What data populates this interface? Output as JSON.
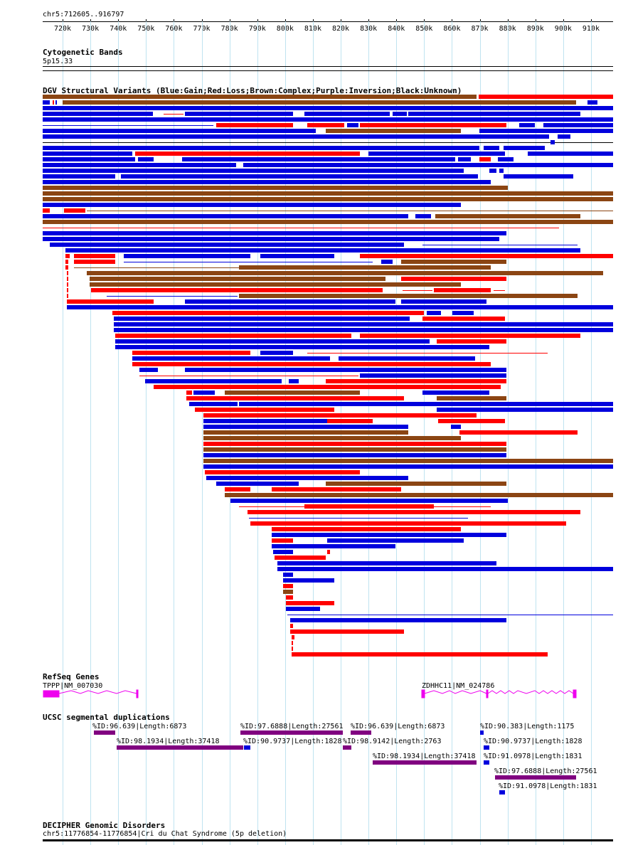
{
  "ruler": {
    "location": "chr5:712605..916797",
    "ticks": [
      "720k",
      "730k",
      "740k",
      "750k",
      "760k",
      "770k",
      "780k",
      "790k",
      "800k",
      "810k",
      "820k",
      "830k",
      "840k",
      "850k",
      "860k",
      "870k",
      "880k",
      "890k",
      "900k",
      "910k"
    ]
  },
  "tracks": {
    "cytoband": {
      "title": "Cytogenetic Bands",
      "band": "5p15.33"
    },
    "dgv": {
      "title": "DGV Structural Variants (Blue:Gain;Red:Loss;Brown:Complex;Purple:Inversion;Black:Unknown)",
      "legend": [
        {
          "name": "Gain",
          "color": "#0000dd"
        },
        {
          "name": "Loss",
          "color": "#ff0000"
        },
        {
          "name": "Complex",
          "color": "#8b4513"
        },
        {
          "name": "Inversion",
          "color": "#800080"
        },
        {
          "name": "Unknown",
          "color": "#000000"
        }
      ]
    },
    "refseq": {
      "title": "RefSeq Genes",
      "genes": [
        {
          "label": "TPPP|NM_007030"
        },
        {
          "label": "ZDHHC11|NM_024786"
        }
      ],
      "color": "#ee00ee"
    },
    "segdup": {
      "title": "UCSC segmental duplications",
      "color": "#800080",
      "features": [
        {
          "label": "%ID:96.639|Length:6873"
        },
        {
          "label": "%ID:98.1934|Length:37418"
        },
        {
          "label": "%ID:97.6888|Length:27561"
        },
        {
          "label": "%ID:90.9737|Length:1828"
        },
        {
          "label": "%ID:96.639|Length:6873"
        },
        {
          "label": "%ID:98.9142|Length:2763"
        },
        {
          "label": "%ID:98.1934|Length:37418"
        },
        {
          "label": "%ID:90.383|Length:1175"
        },
        {
          "label": "%ID:90.9737|Length:1828"
        },
        {
          "label": "%ID:91.0978|Length:1831"
        },
        {
          "label": "%ID:97.6888|Length:27561"
        },
        {
          "label": "%ID:91.0978|Length:1831"
        }
      ]
    },
    "decipher": {
      "title": "DECIPHER Genomic Disorders",
      "feature": "chr5:11776854-11776854|Cri du Chat Syndrome (5p deletion)"
    }
  }
}
